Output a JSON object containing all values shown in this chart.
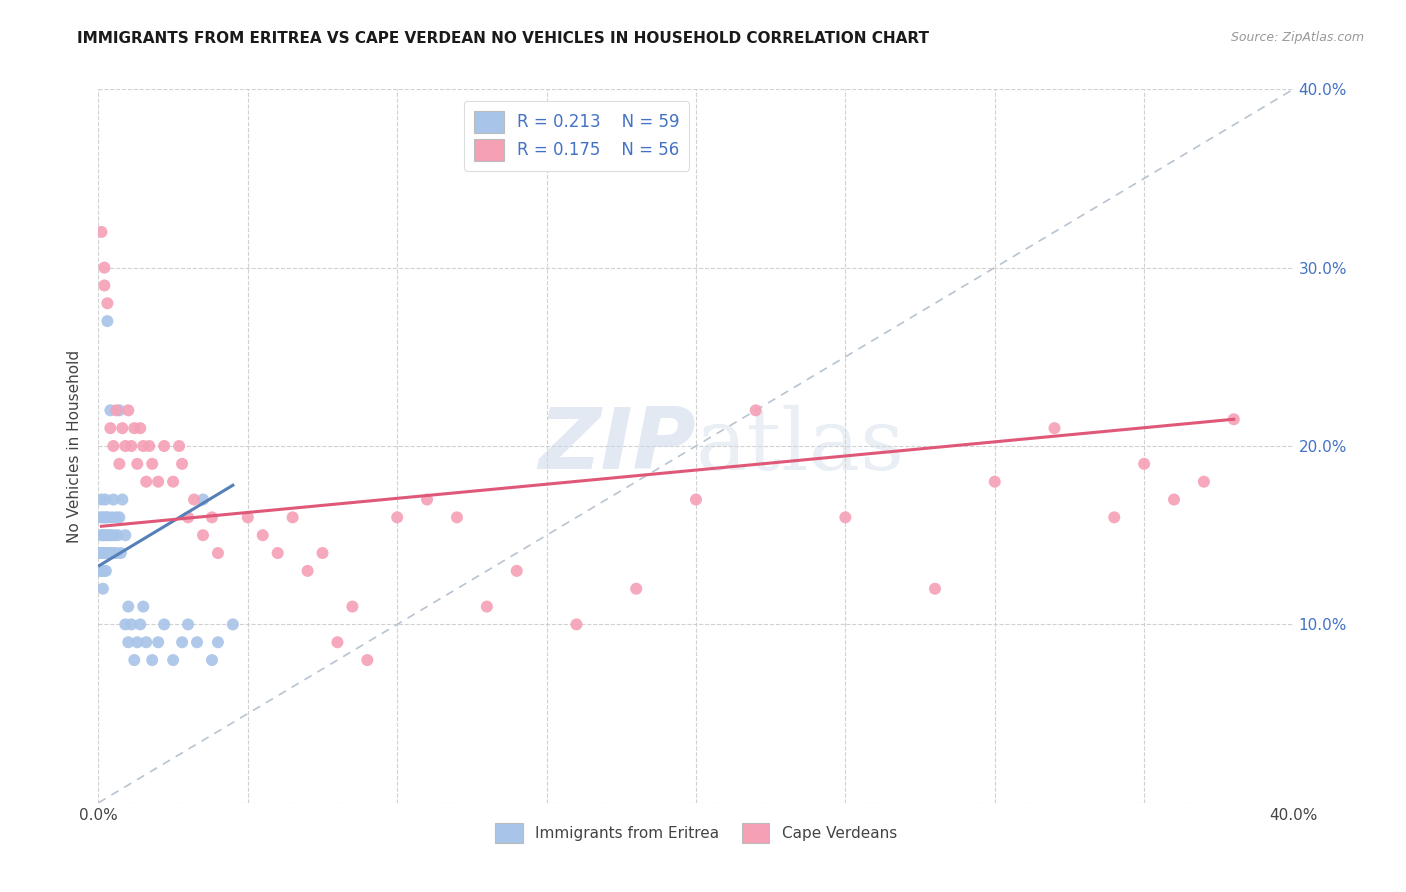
{
  "title": "IMMIGRANTS FROM ERITREA VS CAPE VERDEAN NO VEHICLES IN HOUSEHOLD CORRELATION CHART",
  "source": "Source: ZipAtlas.com",
  "ylabel": "No Vehicles in Household",
  "xlim": [
    0.0,
    0.4
  ],
  "ylim": [
    0.0,
    0.4
  ],
  "xtick_positions": [
    0.0,
    0.05,
    0.1,
    0.15,
    0.2,
    0.25,
    0.3,
    0.35,
    0.4
  ],
  "xtick_labels": [
    "0.0%",
    "",
    "",
    "",
    "",
    "",
    "",
    "",
    "40.0%"
  ],
  "ytick_positions": [
    0.0,
    0.1,
    0.2,
    0.3,
    0.4
  ],
  "ytick_labels_right": [
    "",
    "10.0%",
    "20.0%",
    "30.0%",
    "40.0%"
  ],
  "series1_color": "#a8c4e8",
  "series2_color": "#f5a0b5",
  "trend1_color": "#5580b8",
  "trend2_color": "#e05878",
  "diagonal_color": "#b8c4d0",
  "watermark": "ZIPatlas",
  "watermark_color": "#ccd8e8",
  "background_color": "#ffffff",
  "series1_name": "Immigrants from Eritrea",
  "series2_name": "Cape Verdeans",
  "eritrea_x": [
    0.0003,
    0.0005,
    0.0006,
    0.0008,
    0.001,
    0.001,
    0.0012,
    0.0013,
    0.0015,
    0.0015,
    0.0017,
    0.0018,
    0.002,
    0.002,
    0.0022,
    0.0023,
    0.0025,
    0.0026,
    0.0028,
    0.003,
    0.003,
    0.0032,
    0.0033,
    0.0035,
    0.004,
    0.004,
    0.0042,
    0.0045,
    0.005,
    0.005,
    0.0052,
    0.006,
    0.006,
    0.0065,
    0.007,
    0.007,
    0.0075,
    0.008,
    0.009,
    0.009,
    0.01,
    0.01,
    0.011,
    0.012,
    0.013,
    0.014,
    0.015,
    0.016,
    0.018,
    0.02,
    0.022,
    0.025,
    0.028,
    0.03,
    0.033,
    0.035,
    0.038,
    0.04,
    0.045
  ],
  "eritrea_y": [
    0.14,
    0.13,
    0.16,
    0.15,
    0.14,
    0.17,
    0.13,
    0.16,
    0.12,
    0.15,
    0.14,
    0.13,
    0.16,
    0.14,
    0.15,
    0.17,
    0.13,
    0.16,
    0.14,
    0.15,
    0.27,
    0.16,
    0.14,
    0.15,
    0.14,
    0.22,
    0.15,
    0.16,
    0.14,
    0.17,
    0.15,
    0.16,
    0.14,
    0.15,
    0.22,
    0.16,
    0.14,
    0.17,
    0.15,
    0.1,
    0.09,
    0.11,
    0.1,
    0.08,
    0.09,
    0.1,
    0.11,
    0.09,
    0.08,
    0.09,
    0.1,
    0.08,
    0.09,
    0.1,
    0.09,
    0.17,
    0.08,
    0.09,
    0.1
  ],
  "cape_x": [
    0.001,
    0.002,
    0.002,
    0.003,
    0.004,
    0.005,
    0.006,
    0.007,
    0.008,
    0.009,
    0.01,
    0.011,
    0.012,
    0.013,
    0.014,
    0.015,
    0.016,
    0.017,
    0.018,
    0.02,
    0.022,
    0.025,
    0.027,
    0.028,
    0.03,
    0.032,
    0.035,
    0.038,
    0.04,
    0.05,
    0.055,
    0.06,
    0.065,
    0.07,
    0.075,
    0.08,
    0.085,
    0.09,
    0.1,
    0.11,
    0.12,
    0.13,
    0.14,
    0.16,
    0.18,
    0.2,
    0.22,
    0.25,
    0.28,
    0.3,
    0.32,
    0.34,
    0.35,
    0.36,
    0.37,
    0.38
  ],
  "cape_y": [
    0.32,
    0.3,
    0.29,
    0.28,
    0.21,
    0.2,
    0.22,
    0.19,
    0.21,
    0.2,
    0.22,
    0.2,
    0.21,
    0.19,
    0.21,
    0.2,
    0.18,
    0.2,
    0.19,
    0.18,
    0.2,
    0.18,
    0.2,
    0.19,
    0.16,
    0.17,
    0.15,
    0.16,
    0.14,
    0.16,
    0.15,
    0.14,
    0.16,
    0.13,
    0.14,
    0.09,
    0.11,
    0.08,
    0.16,
    0.17,
    0.16,
    0.11,
    0.13,
    0.1,
    0.12,
    0.17,
    0.22,
    0.16,
    0.12,
    0.18,
    0.21,
    0.16,
    0.19,
    0.17,
    0.18,
    0.215
  ],
  "trend1_x": [
    0.0003,
    0.045
  ],
  "trend1_y": [
    0.133,
    0.178
  ],
  "trend2_x": [
    0.001,
    0.38
  ],
  "trend2_y": [
    0.155,
    0.215
  ]
}
